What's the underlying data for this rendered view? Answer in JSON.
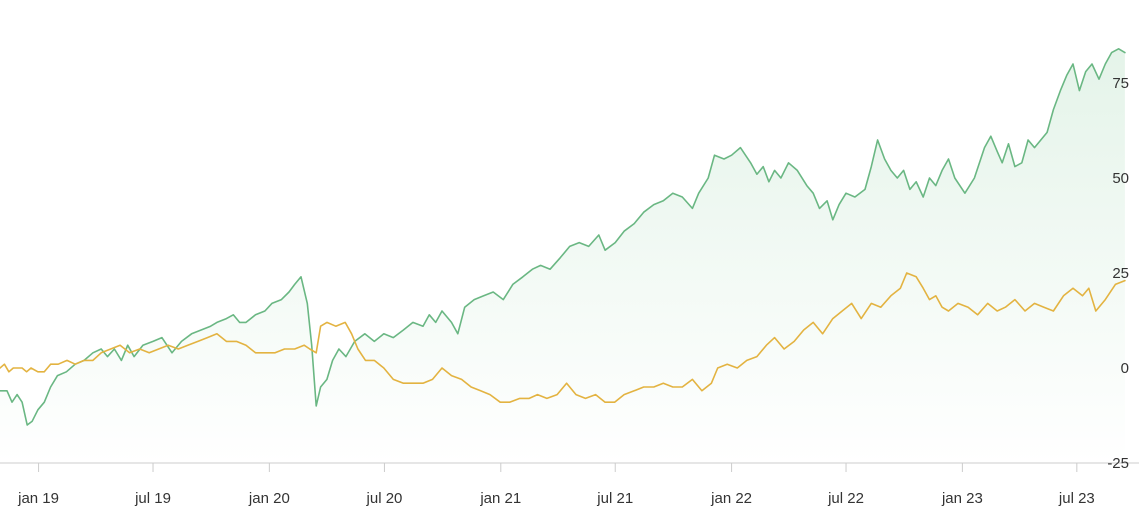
{
  "chart_data": {
    "type": "line",
    "title": "",
    "xlabel": "",
    "ylabel": "",
    "ylim": [
      -25,
      85
    ],
    "y_ticks": [
      -25,
      0,
      25,
      50,
      75
    ],
    "y_tick_labels": [
      "-25",
      "0",
      "25",
      "50",
      "75"
    ],
    "y_axis_side": "right",
    "x_range": [
      "2018-11-01",
      "2023-10-01"
    ],
    "x_ticks": [
      "2019-01-01",
      "2019-07-01",
      "2020-01-01",
      "2020-07-01",
      "2021-01-01",
      "2021-07-01",
      "2022-01-01",
      "2022-07-01",
      "2023-01-01",
      "2023-07-01"
    ],
    "x_tick_labels": [
      "jan 19",
      "jul 19",
      "jan 20",
      "jul 20",
      "jan 21",
      "jul 21",
      "jan 22",
      "jul 22",
      "jan 23",
      "jul 23"
    ],
    "grid": false,
    "legend": "none",
    "series": [
      {
        "color": "#6ab783",
        "fill": "#e3f3e8",
        "points": [
          [
            "2018-11-01",
            -6
          ],
          [
            "2018-11-12",
            -6
          ],
          [
            "2018-11-20",
            -9
          ],
          [
            "2018-11-28",
            -7
          ],
          [
            "2018-12-06",
            -9
          ],
          [
            "2018-12-14",
            -15
          ],
          [
            "2018-12-22",
            -14
          ],
          [
            "2018-12-31",
            -11
          ],
          [
            "2019-01-10",
            -9
          ],
          [
            "2019-01-20",
            -5
          ],
          [
            "2019-01-31",
            -2
          ],
          [
            "2019-02-14",
            -1
          ],
          [
            "2019-02-28",
            1
          ],
          [
            "2019-03-14",
            2
          ],
          [
            "2019-03-28",
            4
          ],
          [
            "2019-04-10",
            5
          ],
          [
            "2019-04-20",
            3
          ],
          [
            "2019-05-01",
            5
          ],
          [
            "2019-05-12",
            2
          ],
          [
            "2019-05-22",
            6
          ],
          [
            "2019-06-01",
            3
          ],
          [
            "2019-06-15",
            6
          ],
          [
            "2019-07-01",
            7
          ],
          [
            "2019-07-15",
            8
          ],
          [
            "2019-07-31",
            4
          ],
          [
            "2019-08-15",
            7
          ],
          [
            "2019-08-31",
            9
          ],
          [
            "2019-09-15",
            10
          ],
          [
            "2019-09-30",
            11
          ],
          [
            "2019-10-10",
            12
          ],
          [
            "2019-10-25",
            13
          ],
          [
            "2019-11-05",
            14
          ],
          [
            "2019-11-15",
            12
          ],
          [
            "2019-11-25",
            12
          ],
          [
            "2019-12-10",
            14
          ],
          [
            "2019-12-25",
            15
          ],
          [
            "2020-01-05",
            17
          ],
          [
            "2020-01-20",
            18
          ],
          [
            "2020-02-01",
            20
          ],
          [
            "2020-02-10",
            22
          ],
          [
            "2020-02-20",
            24
          ],
          [
            "2020-03-01",
            17
          ],
          [
            "2020-03-08",
            6
          ],
          [
            "2020-03-15",
            -10
          ],
          [
            "2020-03-22",
            -5
          ],
          [
            "2020-04-01",
            -3
          ],
          [
            "2020-04-10",
            2
          ],
          [
            "2020-04-20",
            5
          ],
          [
            "2020-05-01",
            3
          ],
          [
            "2020-05-15",
            7
          ],
          [
            "2020-05-31",
            9
          ],
          [
            "2020-06-15",
            7
          ],
          [
            "2020-06-30",
            9
          ],
          [
            "2020-07-15",
            8
          ],
          [
            "2020-07-31",
            10
          ],
          [
            "2020-08-15",
            12
          ],
          [
            "2020-08-31",
            11
          ],
          [
            "2020-09-10",
            14
          ],
          [
            "2020-09-20",
            12
          ],
          [
            "2020-09-30",
            15
          ],
          [
            "2020-10-15",
            12
          ],
          [
            "2020-10-25",
            9
          ],
          [
            "2020-11-05",
            16
          ],
          [
            "2020-11-20",
            18
          ],
          [
            "2020-12-05",
            19
          ],
          [
            "2020-12-20",
            20
          ],
          [
            "2021-01-05",
            18
          ],
          [
            "2021-01-20",
            22
          ],
          [
            "2021-02-05",
            24
          ],
          [
            "2021-02-20",
            26
          ],
          [
            "2021-03-05",
            27
          ],
          [
            "2021-03-20",
            26
          ],
          [
            "2021-04-05",
            29
          ],
          [
            "2021-04-20",
            32
          ],
          [
            "2021-05-05",
            33
          ],
          [
            "2021-05-20",
            32
          ],
          [
            "2021-06-05",
            35
          ],
          [
            "2021-06-15",
            31
          ],
          [
            "2021-07-01",
            33
          ],
          [
            "2021-07-15",
            36
          ],
          [
            "2021-07-31",
            38
          ],
          [
            "2021-08-15",
            41
          ],
          [
            "2021-08-31",
            43
          ],
          [
            "2021-09-15",
            44
          ],
          [
            "2021-09-30",
            46
          ],
          [
            "2021-10-15",
            45
          ],
          [
            "2021-10-31",
            42
          ],
          [
            "2021-11-10",
            46
          ],
          [
            "2021-11-25",
            50
          ],
          [
            "2021-12-05",
            56
          ],
          [
            "2021-12-20",
            55
          ],
          [
            "2022-01-01",
            56
          ],
          [
            "2022-01-15",
            58
          ],
          [
            "2022-01-31",
            54
          ],
          [
            "2022-02-10",
            51
          ],
          [
            "2022-02-20",
            53
          ],
          [
            "2022-03-01",
            49
          ],
          [
            "2022-03-10",
            52
          ],
          [
            "2022-03-20",
            50
          ],
          [
            "2022-04-01",
            54
          ],
          [
            "2022-04-15",
            52
          ],
          [
            "2022-04-30",
            48
          ],
          [
            "2022-05-10",
            46
          ],
          [
            "2022-05-20",
            42
          ],
          [
            "2022-06-01",
            44
          ],
          [
            "2022-06-10",
            39
          ],
          [
            "2022-06-20",
            43
          ],
          [
            "2022-07-01",
            46
          ],
          [
            "2022-07-15",
            45
          ],
          [
            "2022-07-31",
            47
          ],
          [
            "2022-08-10",
            53
          ],
          [
            "2022-08-20",
            60
          ],
          [
            "2022-08-31",
            55
          ],
          [
            "2022-09-10",
            52
          ],
          [
            "2022-09-20",
            50
          ],
          [
            "2022-09-30",
            52
          ],
          [
            "2022-10-10",
            47
          ],
          [
            "2022-10-20",
            49
          ],
          [
            "2022-10-31",
            45
          ],
          [
            "2022-11-10",
            50
          ],
          [
            "2022-11-20",
            48
          ],
          [
            "2022-11-30",
            52
          ],
          [
            "2022-12-10",
            55
          ],
          [
            "2022-12-20",
            50
          ],
          [
            "2023-01-05",
            46
          ],
          [
            "2023-01-20",
            50
          ],
          [
            "2023-02-05",
            58
          ],
          [
            "2023-02-15",
            61
          ],
          [
            "2023-02-25",
            57
          ],
          [
            "2023-03-05",
            54
          ],
          [
            "2023-03-15",
            59
          ],
          [
            "2023-03-25",
            53
          ],
          [
            "2023-04-05",
            54
          ],
          [
            "2023-04-15",
            60
          ],
          [
            "2023-04-25",
            58
          ],
          [
            "2023-05-05",
            60
          ],
          [
            "2023-05-15",
            62
          ],
          [
            "2023-05-25",
            68
          ],
          [
            "2023-06-05",
            73
          ],
          [
            "2023-06-15",
            77
          ],
          [
            "2023-06-25",
            80
          ],
          [
            "2023-07-05",
            73
          ],
          [
            "2023-07-15",
            78
          ],
          [
            "2023-07-25",
            80
          ],
          [
            "2023-08-05",
            76
          ],
          [
            "2023-08-15",
            80
          ],
          [
            "2023-08-25",
            83
          ],
          [
            "2023-09-05",
            84
          ],
          [
            "2023-09-15",
            83
          ]
        ]
      },
      {
        "color": "#e3b341",
        "points": [
          [
            "2018-11-01",
            0
          ],
          [
            "2018-11-08",
            1
          ],
          [
            "2018-11-15",
            -1
          ],
          [
            "2018-11-22",
            0
          ],
          [
            "2018-11-29",
            0
          ],
          [
            "2018-12-06",
            0
          ],
          [
            "2018-12-13",
            -1
          ],
          [
            "2018-12-20",
            0
          ],
          [
            "2018-12-31",
            -1
          ],
          [
            "2019-01-10",
            -1
          ],
          [
            "2019-01-20",
            1
          ],
          [
            "2019-02-01",
            1
          ],
          [
            "2019-02-15",
            2
          ],
          [
            "2019-02-28",
            1
          ],
          [
            "2019-03-14",
            2
          ],
          [
            "2019-03-28",
            2
          ],
          [
            "2019-04-10",
            4
          ],
          [
            "2019-04-25",
            5
          ],
          [
            "2019-05-10",
            6
          ],
          [
            "2019-05-25",
            4
          ],
          [
            "2019-06-10",
            5
          ],
          [
            "2019-06-25",
            4
          ],
          [
            "2019-07-10",
            5
          ],
          [
            "2019-07-25",
            6
          ],
          [
            "2019-08-10",
            5
          ],
          [
            "2019-08-25",
            6
          ],
          [
            "2019-09-10",
            7
          ],
          [
            "2019-09-25",
            8
          ],
          [
            "2019-10-10",
            9
          ],
          [
            "2019-10-25",
            7
          ],
          [
            "2019-11-10",
            7
          ],
          [
            "2019-11-25",
            6
          ],
          [
            "2019-12-10",
            4
          ],
          [
            "2019-12-25",
            4
          ],
          [
            "2020-01-10",
            4
          ],
          [
            "2020-01-25",
            5
          ],
          [
            "2020-02-10",
            5
          ],
          [
            "2020-02-25",
            6
          ],
          [
            "2020-03-05",
            5
          ],
          [
            "2020-03-15",
            4
          ],
          [
            "2020-03-22",
            11
          ],
          [
            "2020-04-01",
            12
          ],
          [
            "2020-04-15",
            11
          ],
          [
            "2020-04-30",
            12
          ],
          [
            "2020-05-10",
            9
          ],
          [
            "2020-05-20",
            5
          ],
          [
            "2020-06-01",
            2
          ],
          [
            "2020-06-15",
            2
          ],
          [
            "2020-06-30",
            0
          ],
          [
            "2020-07-15",
            -3
          ],
          [
            "2020-07-31",
            -4
          ],
          [
            "2020-08-15",
            -4
          ],
          [
            "2020-08-31",
            -4
          ],
          [
            "2020-09-15",
            -3
          ],
          [
            "2020-09-30",
            0
          ],
          [
            "2020-10-15",
            -2
          ],
          [
            "2020-10-31",
            -3
          ],
          [
            "2020-11-15",
            -5
          ],
          [
            "2020-11-30",
            -6
          ],
          [
            "2020-12-15",
            -7
          ],
          [
            "2020-12-31",
            -9
          ],
          [
            "2021-01-15",
            -9
          ],
          [
            "2021-01-31",
            -8
          ],
          [
            "2021-02-15",
            -8
          ],
          [
            "2021-02-28",
            -7
          ],
          [
            "2021-03-15",
            -8
          ],
          [
            "2021-03-31",
            -7
          ],
          [
            "2021-04-15",
            -4
          ],
          [
            "2021-04-30",
            -7
          ],
          [
            "2021-05-15",
            -8
          ],
          [
            "2021-05-31",
            -7
          ],
          [
            "2021-06-15",
            -9
          ],
          [
            "2021-06-30",
            -9
          ],
          [
            "2021-07-15",
            -7
          ],
          [
            "2021-07-31",
            -6
          ],
          [
            "2021-08-15",
            -5
          ],
          [
            "2021-08-31",
            -5
          ],
          [
            "2021-09-15",
            -4
          ],
          [
            "2021-09-30",
            -5
          ],
          [
            "2021-10-15",
            -5
          ],
          [
            "2021-10-31",
            -3
          ],
          [
            "2021-11-15",
            -6
          ],
          [
            "2021-11-30",
            -4
          ],
          [
            "2021-12-10",
            0
          ],
          [
            "2021-12-25",
            1
          ],
          [
            "2022-01-10",
            0
          ],
          [
            "2022-01-25",
            2
          ],
          [
            "2022-02-10",
            3
          ],
          [
            "2022-02-25",
            6
          ],
          [
            "2022-03-10",
            8
          ],
          [
            "2022-03-25",
            5
          ],
          [
            "2022-04-10",
            7
          ],
          [
            "2022-04-25",
            10
          ],
          [
            "2022-05-10",
            12
          ],
          [
            "2022-05-25",
            9
          ],
          [
            "2022-06-10",
            13
          ],
          [
            "2022-06-25",
            15
          ],
          [
            "2022-07-10",
            17
          ],
          [
            "2022-07-25",
            13
          ],
          [
            "2022-08-10",
            17
          ],
          [
            "2022-08-25",
            16
          ],
          [
            "2022-09-10",
            19
          ],
          [
            "2022-09-25",
            21
          ],
          [
            "2022-10-05",
            25
          ],
          [
            "2022-10-20",
            24
          ],
          [
            "2022-10-31",
            21
          ],
          [
            "2022-11-10",
            18
          ],
          [
            "2022-11-20",
            19
          ],
          [
            "2022-11-30",
            16
          ],
          [
            "2022-12-10",
            15
          ],
          [
            "2022-12-25",
            17
          ],
          [
            "2023-01-10",
            16
          ],
          [
            "2023-01-25",
            14
          ],
          [
            "2023-02-10",
            17
          ],
          [
            "2023-02-25",
            15
          ],
          [
            "2023-03-10",
            16
          ],
          [
            "2023-03-25",
            18
          ],
          [
            "2023-04-10",
            15
          ],
          [
            "2023-04-25",
            17
          ],
          [
            "2023-05-10",
            16
          ],
          [
            "2023-05-25",
            15
          ],
          [
            "2023-06-10",
            19
          ],
          [
            "2023-06-25",
            21
          ],
          [
            "2023-07-10",
            19
          ],
          [
            "2023-07-20",
            21
          ],
          [
            "2023-07-31",
            15
          ],
          [
            "2023-08-15",
            18
          ],
          [
            "2023-08-31",
            22
          ],
          [
            "2023-09-15",
            23
          ]
        ]
      }
    ]
  }
}
